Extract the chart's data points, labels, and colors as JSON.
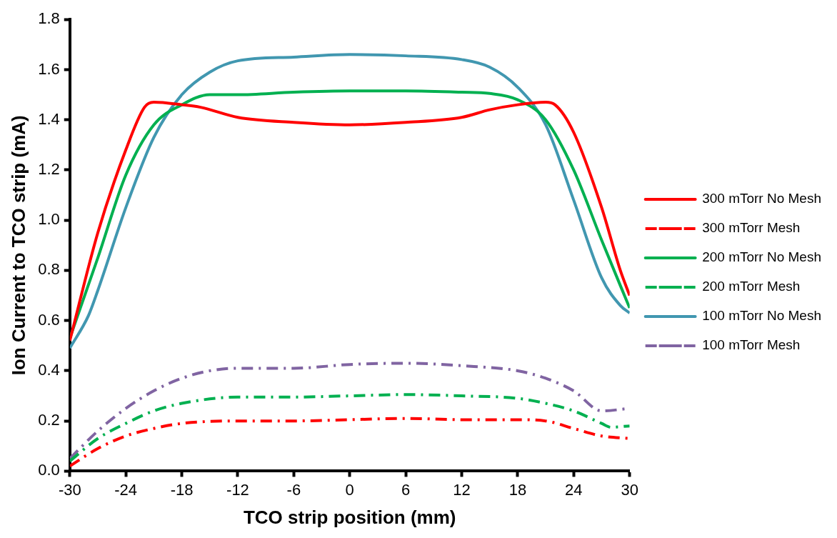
{
  "chart_data": {
    "type": "line",
    "xlabel": "TCO strip position (mm)",
    "ylabel": "Ion Current to TCO strip (mA)",
    "xlim": [
      -30,
      30
    ],
    "xticks": [
      -30,
      -24,
      -18,
      -12,
      -6,
      0,
      6,
      12,
      18,
      24,
      30
    ],
    "ylim": [
      0,
      1.8
    ],
    "yticks": [
      {
        "value": 0,
        "label": "0.0"
      },
      0.2,
      0.4,
      0.6,
      0.8,
      {
        "value": 1,
        "label": "1.0"
      },
      1.2,
      1.4,
      1.6,
      1.8
    ],
    "grid": false,
    "legend": "right",
    "marker": "none",
    "series": [
      {
        "name": "300 mTorr No Mesh",
        "color": "#ff0000",
        "line_style": "solid",
        "x": [
          -30,
          -27,
          -24,
          -22,
          -21,
          -18,
          -16,
          -12,
          -6,
          0,
          6,
          12,
          15,
          18,
          21,
          22,
          24,
          27,
          29,
          30
        ],
        "values": [
          0.52,
          0.95,
          1.28,
          1.45,
          1.47,
          1.46,
          1.45,
          1.41,
          1.39,
          1.38,
          1.39,
          1.41,
          1.44,
          1.46,
          1.47,
          1.46,
          1.35,
          1.05,
          0.8,
          0.7
        ]
      },
      {
        "name": "300 mTorr Mesh",
        "color": "#ff0000",
        "line_style": "dashdot",
        "x": [
          -30,
          -27,
          -24,
          -21,
          -18,
          -12,
          -6,
          0,
          6,
          12,
          18,
          21,
          24,
          27,
          30
        ],
        "values": [
          0.02,
          0.09,
          0.14,
          0.17,
          0.19,
          0.2,
          0.2,
          0.205,
          0.21,
          0.205,
          0.205,
          0.2,
          0.17,
          0.14,
          0.13
        ]
      },
      {
        "name": "200 mTorr No Mesh",
        "color": "#00b050",
        "line_style": "solid",
        "x": [
          -30,
          -27,
          -24,
          -21,
          -18,
          -15,
          -12,
          -6,
          0,
          6,
          12,
          15,
          18,
          21,
          24,
          27,
          30
        ],
        "values": [
          0.53,
          0.85,
          1.18,
          1.38,
          1.46,
          1.5,
          1.5,
          1.51,
          1.515,
          1.515,
          1.51,
          1.505,
          1.48,
          1.4,
          1.2,
          0.92,
          0.65
        ]
      },
      {
        "name": "200 mTorr Mesh",
        "color": "#00b050",
        "line_style": "dashdot",
        "x": [
          -30,
          -27,
          -24,
          -21,
          -18,
          -12,
          -6,
          0,
          6,
          12,
          18,
          21,
          24,
          27,
          28,
          30
        ],
        "values": [
          0.04,
          0.13,
          0.19,
          0.24,
          0.27,
          0.295,
          0.295,
          0.3,
          0.305,
          0.3,
          0.29,
          0.27,
          0.24,
          0.19,
          0.175,
          0.18
        ]
      },
      {
        "name": "100 mTorr No Mesh",
        "color": "#4197b0",
        "line_style": "solid",
        "x": [
          -30,
          -28,
          -27,
          -24,
          -21,
          -18,
          -15,
          -12,
          -6,
          0,
          6,
          12,
          15,
          18,
          21,
          24,
          27,
          29,
          30
        ],
        "values": [
          0.49,
          0.62,
          0.72,
          1.05,
          1.33,
          1.5,
          1.59,
          1.635,
          1.65,
          1.66,
          1.655,
          1.64,
          1.61,
          1.53,
          1.38,
          1.08,
          0.77,
          0.66,
          0.63
        ]
      },
      {
        "name": "100 mTorr Mesh",
        "color": "#8064a2",
        "line_style": "dashdot",
        "x": [
          -30,
          -27,
          -24,
          -21,
          -18,
          -15,
          -12,
          -6,
          0,
          6,
          12,
          18,
          21,
          24,
          27,
          30
        ],
        "values": [
          0.05,
          0.16,
          0.25,
          0.32,
          0.37,
          0.4,
          0.41,
          0.41,
          0.425,
          0.43,
          0.42,
          0.4,
          0.37,
          0.32,
          0.24,
          0.25
        ]
      }
    ]
  }
}
